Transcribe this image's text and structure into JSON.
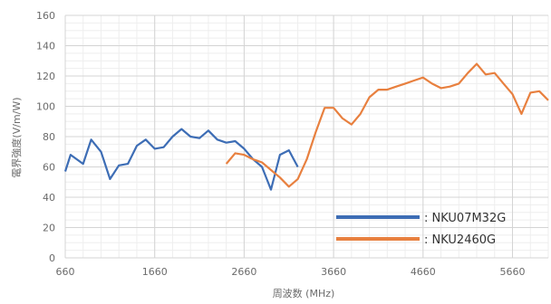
{
  "chart_data": {
    "type": "line",
    "xlabel": "周波数 (MHz)",
    "ylabel": "電界強度(V/m/W)",
    "xlim": [
      660,
      6060
    ],
    "ylim": [
      0,
      160
    ],
    "x_ticks": [
      660,
      1660,
      2660,
      3660,
      4660,
      5660
    ],
    "y_ticks": [
      0,
      20,
      40,
      60,
      80,
      100,
      120,
      140,
      160
    ],
    "grid": true,
    "legend_position": "bottom-right",
    "series": [
      {
        "name": "NKU07M32G",
        "color": "#3d6db5",
        "x": [
          660,
          720,
          860,
          950,
          1060,
          1160,
          1260,
          1360,
          1460,
          1560,
          1660,
          1760,
          1860,
          1960,
          2060,
          2160,
          2260,
          2360,
          2460,
          2560,
          2660,
          2760,
          2860,
          2960,
          3060,
          3160,
          3260
        ],
        "y": [
          57,
          68,
          62,
          78,
          70,
          52,
          61,
          62,
          74,
          78,
          72,
          73,
          80,
          85,
          80,
          79,
          84,
          78,
          76,
          77,
          72,
          65,
          60,
          45,
          68,
          71,
          60
        ]
      },
      {
        "name": "NKU2460G",
        "color": "#e8803f",
        "x": [
          2460,
          2560,
          2660,
          2760,
          2860,
          2960,
          3060,
          3160,
          3260,
          3360,
          3460,
          3560,
          3660,
          3760,
          3860,
          3960,
          4060,
          4160,
          4260,
          4360,
          4460,
          4560,
          4660,
          4760,
          4860,
          4960,
          5060,
          5160,
          5260,
          5360,
          5460,
          5560,
          5660,
          5760,
          5860,
          5960,
          6060
        ],
        "y": [
          62,
          69,
          68,
          65,
          63,
          58,
          53,
          47,
          52,
          65,
          83,
          99,
          99,
          92,
          88,
          95,
          106,
          111,
          111,
          113,
          115,
          117,
          119,
          115,
          112,
          113,
          115,
          122,
          128,
          121,
          122,
          115,
          108,
          95,
          109,
          110,
          104
        ]
      }
    ]
  }
}
